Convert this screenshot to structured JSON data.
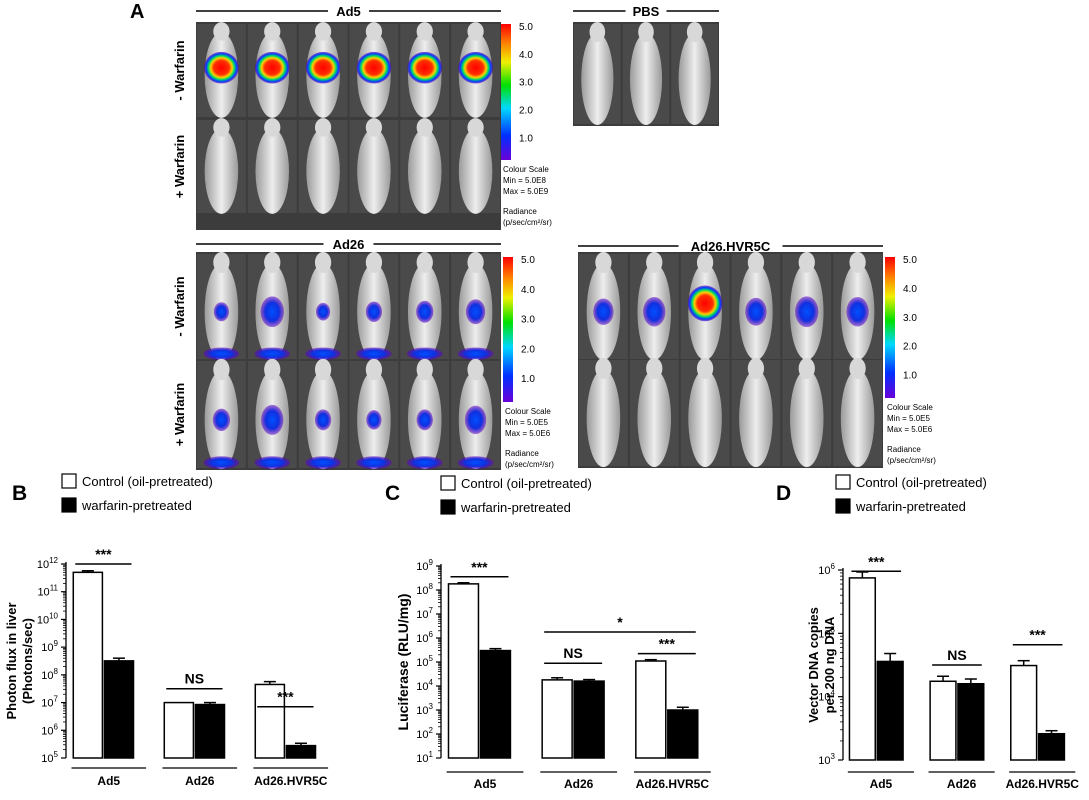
{
  "figure": {
    "panel_a_label": "A",
    "groups": [
      {
        "name": "Ad5",
        "mice_per_row": 6,
        "rows": [
          {
            "label": "- Warfarin",
            "signal": [
              0.92,
              0.95,
              0.95,
              0.93,
              0.88,
              0.97
            ]
          },
          {
            "label": "+ Warfarin",
            "signal": [
              0,
              0,
              0,
              0,
              0,
              0
            ]
          }
        ],
        "scale": {
          "ticks": [
            "5.0",
            "4.0",
            "3.0",
            "2.0",
            "1.0"
          ],
          "title": "Colour Scale",
          "min": "Min = 5.0E8",
          "max": "Max = 5.0E9",
          "radiance": "Radiance",
          "units": "(p/sec/cm²/sr)"
        }
      },
      {
        "name": "PBS",
        "mice_per_row": 3,
        "rows": [
          {
            "label": "",
            "signal": [
              0,
              0,
              0
            ]
          }
        ]
      },
      {
        "name": "Ad26",
        "mice_per_row": 6,
        "rows": [
          {
            "label": "- Warfarin",
            "signal": [
              0.15,
              0.55,
              0.1,
              0.2,
              0.25,
              0.35
            ]
          },
          {
            "label": "+ Warfarin",
            "signal": [
              0.25,
              0.5,
              0.2,
              0.15,
              0.2,
              0.45
            ]
          }
        ],
        "scale": {
          "ticks": [
            "5.0",
            "4.0",
            "3.0",
            "2.0",
            "1.0"
          ],
          "title": "Colour Scale",
          "min": "Min = 5.0E5",
          "max": "Max = 5.0E6",
          "radiance": "Radiance",
          "units": "(p/sec/cm²/sr)"
        }
      },
      {
        "name": "Ad26.HVR5C",
        "mice_per_row": 6,
        "rows": [
          {
            "label": "",
            "signal": [
              0.4,
              0.5,
              0.95,
              0.45,
              0.55,
              0.5
            ]
          },
          {
            "label": "",
            "signal": [
              0,
              0,
              0,
              0,
              0,
              0
            ]
          }
        ],
        "scale": {
          "ticks": [
            "5.0",
            "4.0",
            "3.0",
            "2.0",
            "1.0"
          ],
          "title": "Colour Scale",
          "min": "Min = 5.0E5",
          "max": "Max = 5.0E6",
          "radiance": "Radiance",
          "units": "(p/sec/cm²/sr)"
        }
      }
    ]
  },
  "chart_data": [
    {
      "type": "bar",
      "panel": "B",
      "legend": [
        "Control (oil-pretreated)",
        "warfarin-pretreated"
      ],
      "categories": [
        "Ad5",
        "Ad26",
        "Ad26.HVR5C"
      ],
      "ylabel": "Photon flux in liver\n(Photons/sec)",
      "yscale": "log",
      "ylim_exp": [
        5,
        12
      ],
      "series": [
        {
          "name": "Control (oil-pretreated)",
          "fill": "#ffffff",
          "values": [
            500000000000.0,
            10000000.0,
            45000000.0
          ],
          "errors": [
            70000000000.0,
            0,
            12000000.0
          ]
        },
        {
          "name": "warfarin-pretreated",
          "fill": "#000000",
          "values": [
            320000000.0,
            8500000.0,
            280000.0
          ],
          "errors": [
            80000000.0,
            1500000.0,
            60000.0
          ]
        }
      ],
      "annotations": [
        {
          "text": "***",
          "between": [
            [
              0,
              0
            ],
            [
              0,
              1
            ]
          ],
          "level": 12.0
        },
        {
          "text": "NS",
          "between": [
            [
              1,
              0
            ],
            [
              1,
              1
            ]
          ],
          "level": 7.5
        },
        {
          "text": "***",
          "between": [
            [
              2,
              0
            ],
            [
              2,
              1
            ]
          ],
          "level": 6.85
        }
      ]
    },
    {
      "type": "bar",
      "panel": "C",
      "legend": [
        "Control (oil-pretreated)",
        "warfarin-pretreated"
      ],
      "categories": [
        "Ad5",
        "Ad26",
        "Ad26.HVR5C"
      ],
      "ylabel": "Luciferase (RLU/mg)",
      "yscale": "log",
      "ylim_exp": [
        1,
        9
      ],
      "series": [
        {
          "name": "Control (oil-pretreated)",
          "fill": "#ffffff",
          "values": [
            180000000.0,
            18000.0,
            110000.0
          ],
          "errors": [
            20000000.0,
            4000.0,
            15000.0
          ]
        },
        {
          "name": "warfarin-pretreated",
          "fill": "#000000",
          "values": [
            300000.0,
            16000.0,
            1000.0
          ],
          "errors": [
            60000.0,
            2500.0,
            300.0
          ]
        }
      ],
      "annotations": [
        {
          "text": "***",
          "between": [
            [
              0,
              0
            ],
            [
              0,
              1
            ]
          ],
          "level": 8.55
        },
        {
          "text": "NS",
          "between": [
            [
              1,
              0
            ],
            [
              1,
              1
            ]
          ],
          "level": 4.95
        },
        {
          "text": "*",
          "between": [
            [
              1,
              0
            ],
            [
              2,
              1
            ]
          ],
          "level": 6.25
        },
        {
          "text": "***",
          "between": [
            [
              2,
              0
            ],
            [
              2,
              1
            ]
          ],
          "level": 5.35
        }
      ]
    },
    {
      "type": "bar",
      "panel": "D",
      "legend": [
        "Control (oil-pretreated)",
        "warfarin-pretreated"
      ],
      "categories": [
        "Ad5",
        "Ad26",
        "Ad26.HVR5C"
      ],
      "ylabel": "Vector DNA copies\nper 200 ng DNA",
      "yscale": "log",
      "ylim_exp": [
        3,
        6
      ],
      "series": [
        {
          "name": "Control (oil-pretreated)",
          "fill": "#ffffff",
          "values": [
            750000.0,
            17500.0,
            31000.0
          ],
          "errors": [
            180000.0,
            3500.0,
            6000.0
          ]
        },
        {
          "name": "warfarin-pretreated",
          "fill": "#000000",
          "values": [
            36000.0,
            16000.0,
            2600.0
          ],
          "errors": [
            12000.0,
            3000.0,
            300.0
          ]
        }
      ],
      "annotations": [
        {
          "text": "***",
          "between": [
            [
              0,
              0
            ],
            [
              0,
              1
            ]
          ],
          "level": 5.98
        },
        {
          "text": "NS",
          "between": [
            [
              1,
              0
            ],
            [
              1,
              1
            ]
          ],
          "level": 4.5
        },
        {
          "text": "***",
          "between": [
            [
              2,
              0
            ],
            [
              2,
              1
            ]
          ],
          "level": 4.82
        }
      ]
    }
  ]
}
